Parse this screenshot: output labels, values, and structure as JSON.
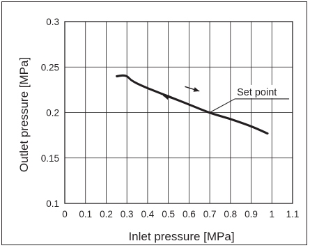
{
  "chart_data": {
    "type": "line",
    "title": "",
    "xlabel": "Inlet pressure [MPa]",
    "ylabel": "Outlet pressure [MPa]",
    "xlim": [
      0,
      1.1
    ],
    "ylim": [
      0.1,
      0.3
    ],
    "x_ticks": [
      "0",
      "0.1",
      "0.2",
      "0.3",
      "0.4",
      "0.5",
      "0.6",
      "0.7",
      "0.8",
      "0.9",
      "1",
      "1.1"
    ],
    "y_ticks": [
      "0.1",
      "0.15",
      "0.2",
      "0.25",
      "0.3"
    ],
    "grid": true,
    "series": [
      {
        "x": [
          0.25,
          0.28,
          0.3,
          0.32,
          0.35,
          0.4,
          0.5,
          0.6,
          0.7,
          0.8,
          0.9,
          0.98
        ],
        "y": [
          0.24,
          0.241,
          0.24,
          0.236,
          0.232,
          0.227,
          0.218,
          0.209,
          0.2,
          0.193,
          0.185,
          0.177
        ],
        "color": "#231f20"
      }
    ],
    "annotations": [
      {
        "text": "Set point",
        "x": 0.7,
        "y": 0.2
      }
    ]
  }
}
